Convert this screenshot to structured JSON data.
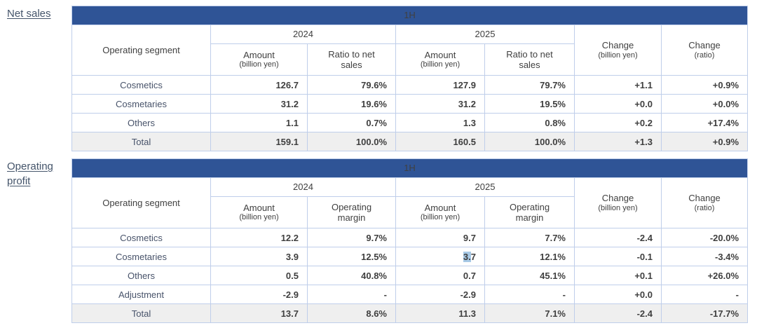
{
  "colors": {
    "header_bg": "#2F5496",
    "border": "#BFCEEA",
    "label_color": "#44546A",
    "header_text": "#404040",
    "segment_text": "#48536A",
    "number_text": "#3F3F3F",
    "total_bg": "#EFEFEF",
    "selection": "#A7C9E6"
  },
  "sections": [
    {
      "label": "Net sales",
      "table": {
        "period": "1H",
        "segment_header": "Operating segment",
        "groups": [
          {
            "year": "2024",
            "amount_title": "Amount",
            "amount_note": "(billion yen)",
            "ratio_title": "Ratio to net sales"
          },
          {
            "year": "2025",
            "amount_title": "Amount",
            "amount_note": "(billion yen)",
            "ratio_title": "Ratio to net sales"
          }
        ],
        "change_yen": {
          "title": "Change",
          "note": "(billion yen)"
        },
        "change_ratio": {
          "title": "Change",
          "note": "(ratio)"
        },
        "rows": [
          {
            "segment": "Cosmetics",
            "cells": [
              "126.7",
              "79.6%",
              "127.9",
              "79.7%",
              "+1.1",
              "+0.9%"
            ]
          },
          {
            "segment": "Cosmetaries",
            "cells": [
              "31.2",
              "19.6%",
              "31.2",
              "19.5%",
              "+0.0",
              "+0.0%"
            ]
          },
          {
            "segment": "Others",
            "cells": [
              "1.1",
              "0.7%",
              "1.3",
              "0.8%",
              "+0.2",
              "+17.4%"
            ]
          },
          {
            "segment": "Total",
            "cells": [
              "159.1",
              "100.0%",
              "160.5",
              "100.0%",
              "+1.3",
              "+0.9%"
            ],
            "total": true
          }
        ]
      }
    },
    {
      "label": "Operating profit",
      "table": {
        "period": "1H",
        "segment_header": "Operating segment",
        "groups": [
          {
            "year": "2024",
            "amount_title": "Amount",
            "amount_note": "(billion yen)",
            "ratio_title": "Operating margin"
          },
          {
            "year": "2025",
            "amount_title": "Amount",
            "amount_note": "(billion yen)",
            "ratio_title": "Operating margin"
          }
        ],
        "change_yen": {
          "title": "Change",
          "note": "(billion yen)"
        },
        "change_ratio": {
          "title": "Change",
          "note": "(ratio)"
        },
        "rows": [
          {
            "segment": "Cosmetics",
            "cells": [
              "12.2",
              "9.7%",
              "9.7",
              "7.7%",
              "-2.4",
              "-20.0%"
            ]
          },
          {
            "segment": "Cosmetaries",
            "cells": [
              "3.9",
              "12.5%",
              {
                "highlight_prefix": "3.",
                "rest": "7"
              },
              "12.1%",
              "-0.1",
              "-3.4%"
            ]
          },
          {
            "segment": "Others",
            "cells": [
              "0.5",
              "40.8%",
              "0.7",
              "45.1%",
              "+0.1",
              "+26.0%"
            ]
          },
          {
            "segment": "Adjustment",
            "cells": [
              "-2.9",
              "-",
              "-2.9",
              "-",
              "+0.0",
              "-"
            ]
          },
          {
            "segment": "Total",
            "cells": [
              "13.7",
              "8.6%",
              "11.3",
              "7.1%",
              "-2.4",
              "-17.7%"
            ],
            "total": true
          }
        ]
      }
    }
  ]
}
